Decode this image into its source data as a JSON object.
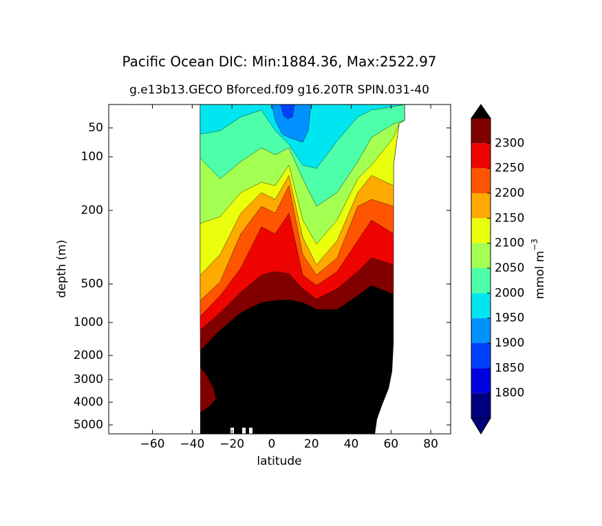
{
  "chart_data": {
    "type": "contour",
    "title": "Pacific Ocean DIC: Min:1884.36, Max:2522.97",
    "subtitle": "g.e13b13.GECO Bforced.f09 g16.20TR SPIN.031-40",
    "xlabel": "latitude",
    "ylabel": "depth (m)",
    "xlim": [
      -82,
      90
    ],
    "xticks": [
      {
        "value": -60,
        "label": "−60"
      },
      {
        "value": -40,
        "label": "−40"
      },
      {
        "value": -20,
        "label": "−20"
      },
      0,
      20,
      40,
      60,
      80
    ],
    "ylim": [
      5400,
      10
    ],
    "yticks": [
      50,
      100,
      200,
      500,
      1000,
      2000,
      3000,
      4000,
      5000
    ],
    "levels": [
      1750,
      1800,
      1850,
      1900,
      1950,
      2000,
      2050,
      2100,
      2150,
      2200,
      2250,
      2300,
      2350
    ],
    "colors": [
      "#00007f",
      "#0000e0",
      "#0040ff",
      "#0090ff",
      "#00e6f0",
      "#4dffa9",
      "#a4ff53",
      "#eaff0c",
      "#ffaa00",
      "#ff5500",
      "#ee0400",
      "#800000"
    ],
    "under_color": "#00007f",
    "over_color": "#000000",
    "colorbar_ticks": [
      1800,
      1850,
      1900,
      1950,
      2000,
      2050,
      2100,
      2150,
      2200,
      2250,
      2300
    ],
    "colorbar_label": "mmol m",
    "colorbar_label_exponent": "−3"
  }
}
